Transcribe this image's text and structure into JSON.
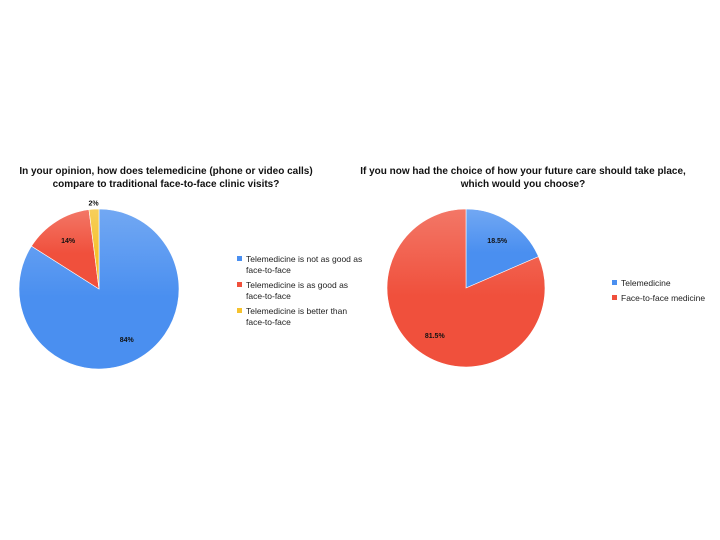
{
  "chart_data": [
    {
      "type": "pie",
      "title": "In your opinion, how does telemedicine (phone or video calls) compare to traditional face-to-face clinic visits?",
      "categories": [
        "Telemedicine is not as good as face-to-face",
        "Telemedicine is as good as face-to-face",
        "Telemedicine is better than face-to-face"
      ],
      "values": [
        84,
        14,
        2
      ],
      "data_labels": [
        "84%",
        "14%",
        "2%"
      ],
      "colors": [
        "#4a8ff0",
        "#f0503c",
        "#f5c22e"
      ],
      "start_angle_deg": 0,
      "legend_position": "right"
    },
    {
      "type": "pie",
      "title": "If you now had the choice of how your future care should take place, which would you choose?",
      "categories": [
        "Telemedicine",
        "Face-to-face medicine"
      ],
      "values": [
        18.5,
        81.5
      ],
      "data_labels": [
        "18.5%",
        "81.5%"
      ],
      "colors": [
        "#4a8ff0",
        "#f0503c"
      ],
      "start_angle_deg": 0,
      "legend_position": "right"
    }
  ]
}
